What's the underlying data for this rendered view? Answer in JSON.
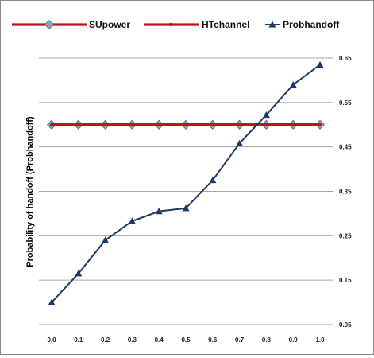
{
  "chart_data": {
    "type": "line",
    "title": "",
    "xlabel": "",
    "ylabel": "Probability of handoff (Probhandoff)",
    "x": [
      0.0,
      0.1,
      0.2,
      0.3,
      0.4,
      0.5,
      0.6,
      0.7,
      0.8,
      0.9,
      1.0
    ],
    "x_tick_labels": [
      "0.0",
      "0.1",
      "0.2",
      "0.3",
      "0.4",
      "0.5",
      "0.6",
      "0.7",
      "0.8",
      "0.9",
      "1.0"
    ],
    "y_ticks": [
      0.05,
      0.15,
      0.25,
      0.35,
      0.45,
      0.55,
      0.65
    ],
    "y_tick_labels": [
      "0.05",
      "0.15",
      "0.25",
      "0.35",
      "0.45",
      "0.55",
      "0.65"
    ],
    "ylim": [
      0.05,
      0.65
    ],
    "y_axis_side": "right",
    "grid": "horizontal",
    "legend_position": "top",
    "series": [
      {
        "name": "SUpower",
        "color": "#c0101a",
        "marker": "diamond",
        "marker_color": "#8e9fc0",
        "values": [
          0.5,
          0.5,
          0.5,
          0.5,
          0.5,
          0.5,
          0.5,
          0.5,
          0.5,
          0.5,
          0.5
        ]
      },
      {
        "name": "HTchannel",
        "color": "#c0101a",
        "marker": "dot",
        "marker_color": "#c0101a",
        "values": [
          0.5,
          0.5,
          0.5,
          0.5,
          0.5,
          0.5,
          0.5,
          0.5,
          0.5,
          0.5,
          0.5
        ]
      },
      {
        "name": "Probhandoff",
        "color": "#1f3864",
        "marker": "triangle",
        "marker_color": "#1f3864",
        "values": [
          0.1,
          0.165,
          0.24,
          0.283,
          0.305,
          0.312,
          0.375,
          0.458,
          0.522,
          0.59,
          0.635
        ]
      }
    ]
  }
}
